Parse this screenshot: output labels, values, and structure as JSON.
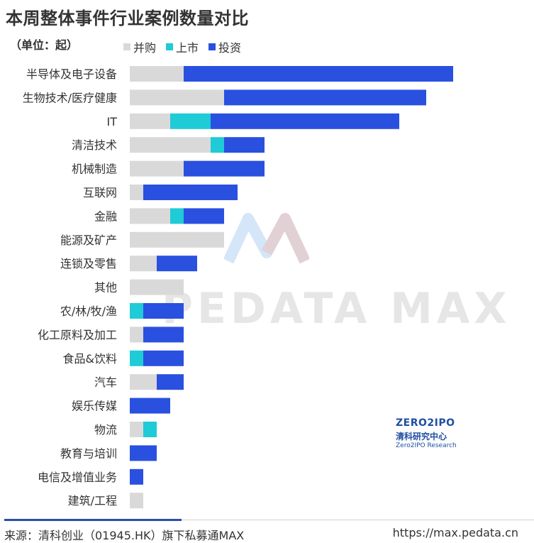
{
  "header": {
    "title": "本周整体事件行业案例数量对比",
    "unit": "（单位：起）"
  },
  "legend": [
    {
      "label": "并购",
      "color": "#d9d9d9"
    },
    {
      "label": "上市",
      "color": "#1fcbd6"
    },
    {
      "label": "投资",
      "color": "#2a50e0"
    }
  ],
  "chart_data": {
    "type": "bar",
    "orientation": "horizontal",
    "stacked": true,
    "categories": [
      "半导体及电子设备",
      "生物技术/医疗健康",
      "IT",
      "清洁技术",
      "机械制造",
      "互联网",
      "金融",
      "能源及矿产",
      "连锁及零售",
      "其他",
      "农/林/牧/渔",
      "化工原料及加工",
      "食品&饮料",
      "汽车",
      "娱乐传媒",
      "物流",
      "教育与培训",
      "电信及增值业务",
      "建筑/工程"
    ],
    "series": [
      {
        "name": "并购",
        "color": "#d9d9d9",
        "values": [
          4,
          7,
          3,
          6,
          4,
          1,
          3,
          7,
          2,
          4,
          0,
          1,
          0,
          2,
          0,
          1,
          0,
          0,
          1
        ]
      },
      {
        "name": "上市",
        "color": "#1fcbd6",
        "values": [
          0,
          0,
          3,
          1,
          0,
          0,
          1,
          0,
          0,
          0,
          1,
          0,
          1,
          0,
          0,
          1,
          0,
          0,
          0
        ]
      },
      {
        "name": "投资",
        "color": "#2a50e0",
        "values": [
          20,
          15,
          14,
          3,
          6,
          7,
          3,
          0,
          3,
          0,
          3,
          3,
          3,
          2,
          3,
          0,
          2,
          1,
          0
        ]
      }
    ],
    "grid": false,
    "legend_position": "top"
  },
  "watermark": {
    "text": "PEDATA MAX"
  },
  "brand": {
    "top": "ZERO2IPO",
    "middle": "清科研究中心",
    "bottom": "Zero2IPO Research"
  },
  "footer": {
    "source": "来源：清科创业（01945.HK）旗下私募通MAX",
    "url": "https://max.pedata.cn"
  }
}
